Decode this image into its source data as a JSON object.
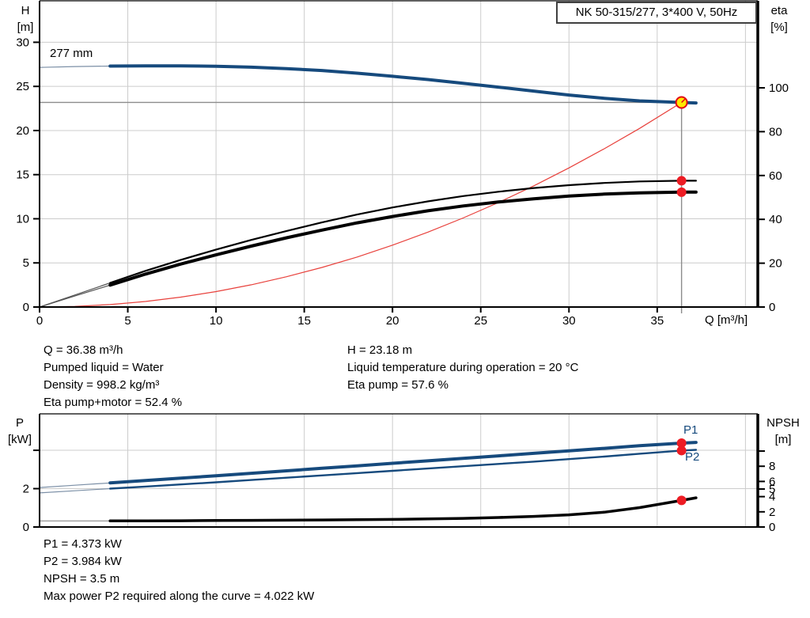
{
  "head_chart_labels": {
    "title": "NK 50-315/277, 3*400 V, 50Hz",
    "y_left_1": "H",
    "y_left_2": "[m]",
    "y_right_1": "eta",
    "y_right_2": "[%]",
    "x_label": "Q [m³/h]",
    "curve_label": "277 mm"
  },
  "power_chart_labels": {
    "y_left_1": "P",
    "y_left_2": "[kW]",
    "y_right_1": "NPSH",
    "y_right_2": "[m]",
    "p1": "P1",
    "p2": "P2"
  },
  "operating_point_info": {
    "left": [
      "Q = 36.38 m³/h",
      "Pumped liquid = Water",
      "Density = 998.2 kg/m³",
      "Eta pump+motor = 52.4 %"
    ],
    "right": [
      "H = 23.18 m",
      "Liquid temperature during operation = 20 °C",
      "Eta pump = 57.6 %"
    ]
  },
  "power_info": [
    "P1 = 4.373 kW",
    "P2 = 3.984 kW",
    "NPSH = 3.5 m",
    "Max power P2 required along the curve = 4.022 kW"
  ],
  "colors": {
    "curve_blue": "#164a7d",
    "thin_blue": "#7b8fa6",
    "curve_black": "#000000",
    "thin_black": "#555555",
    "system_red": "#e8413c",
    "marker_red": "#ed1c24",
    "duty_yellow": "#ffe800",
    "duty_ring_red": "#e30613",
    "grid": "#cccccc",
    "crosshair": "#8c8c8c"
  },
  "chart_data": [
    {
      "type": "line",
      "title": "NK 50-315/277, 3*400 V, 50Hz",
      "xlabel": "Q [m³/h]",
      "ylabel_left": "H [m]",
      "ylabel_right": "eta [%]",
      "xlim": [
        0,
        40.7
      ],
      "ylim_left": [
        0,
        34.7
      ],
      "ylim_right": [
        0,
        139.7
      ],
      "x_ticks": [
        0,
        5,
        10,
        15,
        20,
        25,
        30,
        35
      ],
      "x_grid": [
        5,
        10,
        15,
        20,
        25,
        30,
        35,
        40
      ],
      "y_ticks_left": [
        0,
        5,
        10,
        15,
        20,
        25,
        30
      ],
      "y_grid_left": [
        5,
        10,
        15,
        20,
        25,
        30
      ],
      "y_ticks_right": [
        0,
        20,
        40,
        60,
        80,
        100
      ],
      "grid": true,
      "legend": "none",
      "duty_point": {
        "Q": 36.38,
        "H": 23.18,
        "eta_pump": 57.6,
        "eta_pump_motor": 52.4
      },
      "crosshair": {
        "h_line_at_H": 23.18,
        "v_line_at_Q": 36.38
      },
      "series": [
        {
          "name": "head-curve-277mm",
          "axis": "left",
          "color": "#164a7d",
          "thin_color": "#7b8fa6",
          "width": 4,
          "thin_until": 3.4,
          "x": [
            0,
            2,
            4,
            6,
            8,
            10,
            12,
            14,
            16,
            18,
            20,
            22,
            24,
            26,
            28,
            30,
            32,
            34,
            36.38,
            37.2
          ],
          "y": [
            27.15,
            27.25,
            27.3,
            27.33,
            27.33,
            27.28,
            27.18,
            27.02,
            26.8,
            26.5,
            26.15,
            25.78,
            25.36,
            24.92,
            24.47,
            24.02,
            23.65,
            23.36,
            23.18,
            23.12
          ]
        },
        {
          "name": "system-curve",
          "axis": "left",
          "color": "#e8413c",
          "width": 1.2,
          "x": [
            0,
            2,
            4,
            6,
            8,
            10,
            12,
            14,
            16,
            18,
            20,
            22,
            24,
            26,
            28,
            30,
            32,
            34,
            36.38
          ],
          "y": [
            0,
            0.07,
            0.28,
            0.63,
            1.12,
            1.75,
            2.52,
            3.43,
            4.48,
            5.67,
            7.01,
            8.48,
            10.09,
            11.84,
            13.73,
            15.76,
            17.93,
            20.24,
            23.18
          ]
        },
        {
          "name": "eta-pump-curve",
          "axis": "right",
          "color": "#000000",
          "thin_color": "#555555",
          "width": 2.2,
          "thin_until": 3.2,
          "x": [
            0,
            2,
            4,
            6,
            8,
            10,
            12,
            14,
            16,
            18,
            20,
            22,
            24,
            26,
            28,
            30,
            32,
            34,
            36.38,
            37.2
          ],
          "y": [
            0,
            5.5,
            11,
            16.5,
            21.5,
            26.2,
            30.6,
            34.7,
            38.6,
            42.2,
            45.4,
            48.2,
            50.6,
            52.6,
            54.3,
            55.6,
            56.6,
            57.3,
            57.6,
            57.6
          ]
        },
        {
          "name": "eta-pump-motor-curve",
          "axis": "right",
          "color": "#000000",
          "thin_color": "#555555",
          "width": 4,
          "thin_until": 3.2,
          "x": [
            0,
            2,
            4,
            6,
            8,
            10,
            12,
            14,
            16,
            18,
            20,
            22,
            24,
            26,
            28,
            30,
            32,
            34,
            36.38,
            37.2
          ],
          "y": [
            0,
            5,
            10,
            15,
            19.6,
            23.8,
            27.8,
            31.6,
            35.1,
            38.4,
            41.3,
            43.9,
            46.1,
            47.9,
            49.4,
            50.6,
            51.5,
            52.1,
            52.4,
            52.4
          ]
        }
      ],
      "markers": [
        {
          "name": "eta-pump-endpoint",
          "axis": "right",
          "x": 36.38,
          "y": 57.6,
          "r": 6,
          "fill": "#ed1c24"
        },
        {
          "name": "eta-pump-motor-endpoint",
          "axis": "right",
          "x": 36.38,
          "y": 52.4,
          "r": 6,
          "fill": "#ed1c24"
        }
      ]
    },
    {
      "type": "line",
      "title": "",
      "xlabel": "",
      "ylabel_left": "P [kW]",
      "ylabel_right": "NPSH [m]",
      "xlim": [
        0,
        40.7
      ],
      "ylim_left": [
        0,
        5.9
      ],
      "ylim_right": [
        0,
        14.9
      ],
      "x_ticks": [],
      "x_grid": [
        5,
        10,
        15,
        20,
        25,
        30,
        35,
        40
      ],
      "y_ticks_left": [
        0,
        2
      ],
      "y_ticks_left_unlabeled": [
        4
      ],
      "y_grid_left": [
        2,
        4
      ],
      "y_ticks_right": [
        0,
        2,
        4,
        5,
        6,
        8
      ],
      "y_ticks_right_unlabeled": [
        10
      ],
      "grid": true,
      "legend": "P1 and P2 labeled at curve ends",
      "series": [
        {
          "name": "p1-curve",
          "axis": "left",
          "color": "#164a7d",
          "thin_color": "#7b8fa6",
          "width": 4,
          "thin_until": 3.4,
          "x": [
            0,
            2,
            4,
            6,
            8,
            10,
            12,
            14,
            16,
            18,
            20,
            22,
            24,
            26,
            28,
            30,
            32,
            34,
            36.38,
            37.2
          ],
          "y": [
            2.06,
            2.18,
            2.3,
            2.42,
            2.55,
            2.67,
            2.8,
            2.93,
            3.06,
            3.19,
            3.32,
            3.45,
            3.58,
            3.71,
            3.84,
            3.97,
            4.1,
            4.24,
            4.373,
            4.41
          ]
        },
        {
          "name": "p2-curve",
          "axis": "left",
          "color": "#164a7d",
          "thin_color": "#7b8fa6",
          "width": 2.4,
          "thin_until": 3.4,
          "x": [
            0,
            2,
            4,
            6,
            8,
            10,
            12,
            14,
            16,
            18,
            20,
            22,
            24,
            26,
            28,
            30,
            32,
            34,
            36.38,
            37.2
          ],
          "y": [
            1.78,
            1.89,
            2.0,
            2.11,
            2.22,
            2.33,
            2.45,
            2.57,
            2.69,
            2.81,
            2.93,
            3.05,
            3.17,
            3.29,
            3.41,
            3.54,
            3.67,
            3.82,
            3.984,
            4.022
          ]
        },
        {
          "name": "npsh-curve",
          "axis": "right",
          "color": "#000000",
          "thin_color": "#888888",
          "width": 3.5,
          "thin_until": 3.4,
          "x": [
            0,
            2,
            4,
            6,
            8,
            10,
            12,
            14,
            16,
            18,
            20,
            22,
            24,
            26,
            28,
            30,
            32,
            34,
            36.38,
            37.2
          ],
          "y": [
            0.8,
            0.8,
            0.8,
            0.8,
            0.82,
            0.85,
            0.88,
            0.9,
            0.93,
            0.97,
            1.0,
            1.06,
            1.14,
            1.25,
            1.4,
            1.6,
            1.95,
            2.55,
            3.5,
            3.85
          ]
        }
      ],
      "markers": [
        {
          "name": "p1-endpoint",
          "axis": "left",
          "x": 36.38,
          "y": 4.373,
          "r": 6,
          "fill": "#ed1c24"
        },
        {
          "name": "p2-endpoint",
          "axis": "left",
          "x": 36.38,
          "y": 3.984,
          "r": 6,
          "fill": "#ed1c24"
        },
        {
          "name": "npsh-endpoint",
          "axis": "right",
          "x": 36.38,
          "y": 3.5,
          "r": 6,
          "fill": "#ed1c24"
        }
      ]
    }
  ]
}
